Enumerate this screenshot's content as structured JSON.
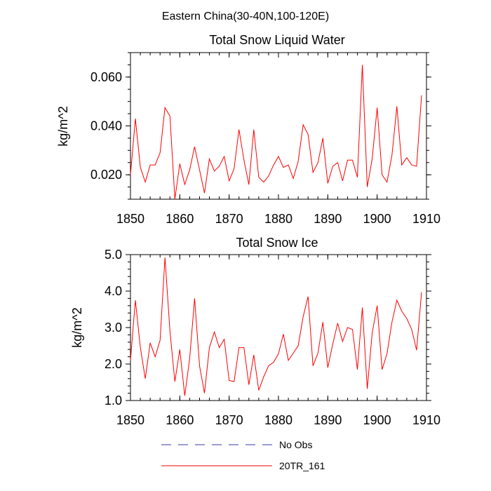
{
  "figure_title": "Eastern China(30-40N,100-120E)",
  "colors": {
    "series": "#ff0000",
    "no_obs": "#3a3aa8",
    "axis": "#000000"
  },
  "legend": {
    "no_obs_label": "No Obs",
    "series_label": "20TR_161"
  },
  "chart_data": [
    {
      "type": "line",
      "title": "Total Snow Liquid Water",
      "xlabel": "",
      "ylabel": "kg/m^2",
      "xlim": [
        1850,
        1910
      ],
      "ylim": [
        0.01,
        0.07
      ],
      "xticks": [
        1850,
        1860,
        1870,
        1880,
        1890,
        1900,
        1910
      ],
      "yticks": [
        0.02,
        0.04,
        0.06
      ],
      "ytick_labels": [
        "0.020",
        "0.040",
        "0.060"
      ],
      "xminor_step": 2,
      "yminor_step": 0.005,
      "series": [
        {
          "name": "20TR_161",
          "x": [
            1850,
            1851,
            1852,
            1853,
            1854,
            1855,
            1856,
            1857,
            1858,
            1859,
            1860,
            1861,
            1862,
            1863,
            1864,
            1865,
            1866,
            1867,
            1868,
            1869,
            1870,
            1871,
            1872,
            1873,
            1874,
            1875,
            1876,
            1877,
            1878,
            1879,
            1880,
            1881,
            1882,
            1883,
            1884,
            1885,
            1886,
            1887,
            1888,
            1889,
            1890,
            1891,
            1892,
            1893,
            1894,
            1895,
            1896,
            1897,
            1898,
            1899,
            1900,
            1901,
            1902,
            1903,
            1904,
            1905,
            1906,
            1907,
            1908,
            1909
          ],
          "values": [
            0.02,
            0.043,
            0.023,
            0.017,
            0.024,
            0.024,
            0.029,
            0.0475,
            0.044,
            0.01,
            0.0245,
            0.016,
            0.022,
            0.0315,
            0.022,
            0.0125,
            0.0265,
            0.0215,
            0.0235,
            0.0275,
            0.0175,
            0.0225,
            0.0385,
            0.026,
            0.016,
            0.0385,
            0.019,
            0.017,
            0.0195,
            0.024,
            0.0275,
            0.023,
            0.024,
            0.0185,
            0.0255,
            0.0405,
            0.0365,
            0.021,
            0.025,
            0.035,
            0.0165,
            0.0235,
            0.025,
            0.0175,
            0.026,
            0.026,
            0.019,
            0.065,
            0.015,
            0.0265,
            0.0475,
            0.02,
            0.017,
            0.028,
            0.048,
            0.024,
            0.027,
            0.024,
            0.0235,
            0.0525
          ]
        }
      ]
    },
    {
      "type": "line",
      "title": "Total Snow Ice",
      "xlabel": "",
      "ylabel": "kg/m^2",
      "xlim": [
        1850,
        1910
      ],
      "ylim": [
        1.0,
        5.0
      ],
      "xticks": [
        1850,
        1860,
        1870,
        1880,
        1890,
        1900,
        1910
      ],
      "yticks": [
        1.0,
        2.0,
        3.0,
        4.0,
        5.0
      ],
      "ytick_labels": [
        "1.0",
        "2.0",
        "3.0",
        "4.0",
        "5.0"
      ],
      "xminor_step": 2,
      "yminor_step": 0.2,
      "series": [
        {
          "name": "20TR_161",
          "x": [
            1850,
            1851,
            1852,
            1853,
            1854,
            1855,
            1856,
            1857,
            1858,
            1859,
            1860,
            1861,
            1862,
            1863,
            1864,
            1865,
            1866,
            1867,
            1868,
            1869,
            1870,
            1871,
            1872,
            1873,
            1874,
            1875,
            1876,
            1877,
            1878,
            1879,
            1880,
            1881,
            1882,
            1883,
            1884,
            1885,
            1886,
            1887,
            1888,
            1889,
            1890,
            1891,
            1892,
            1893,
            1894,
            1895,
            1896,
            1897,
            1898,
            1899,
            1900,
            1901,
            1902,
            1903,
            1904,
            1905,
            1906,
            1907,
            1908,
            1909
          ],
          "values": [
            2.1,
            3.75,
            2.45,
            1.6,
            2.58,
            2.2,
            2.65,
            4.92,
            2.9,
            1.52,
            2.4,
            1.13,
            2.15,
            3.8,
            1.95,
            1.2,
            2.45,
            2.88,
            2.45,
            2.68,
            1.55,
            1.52,
            2.45,
            2.45,
            1.43,
            2.25,
            1.28,
            1.65,
            1.95,
            2.05,
            2.28,
            2.82,
            2.1,
            2.3,
            2.5,
            3.3,
            3.85,
            1.95,
            2.3,
            3.15,
            1.9,
            2.55,
            3.12,
            2.62,
            3.0,
            2.95,
            1.85,
            3.55,
            1.32,
            2.85,
            3.6,
            1.85,
            2.28,
            3.15,
            3.75,
            3.45,
            3.25,
            2.95,
            2.38,
            3.97
          ]
        }
      ]
    }
  ]
}
